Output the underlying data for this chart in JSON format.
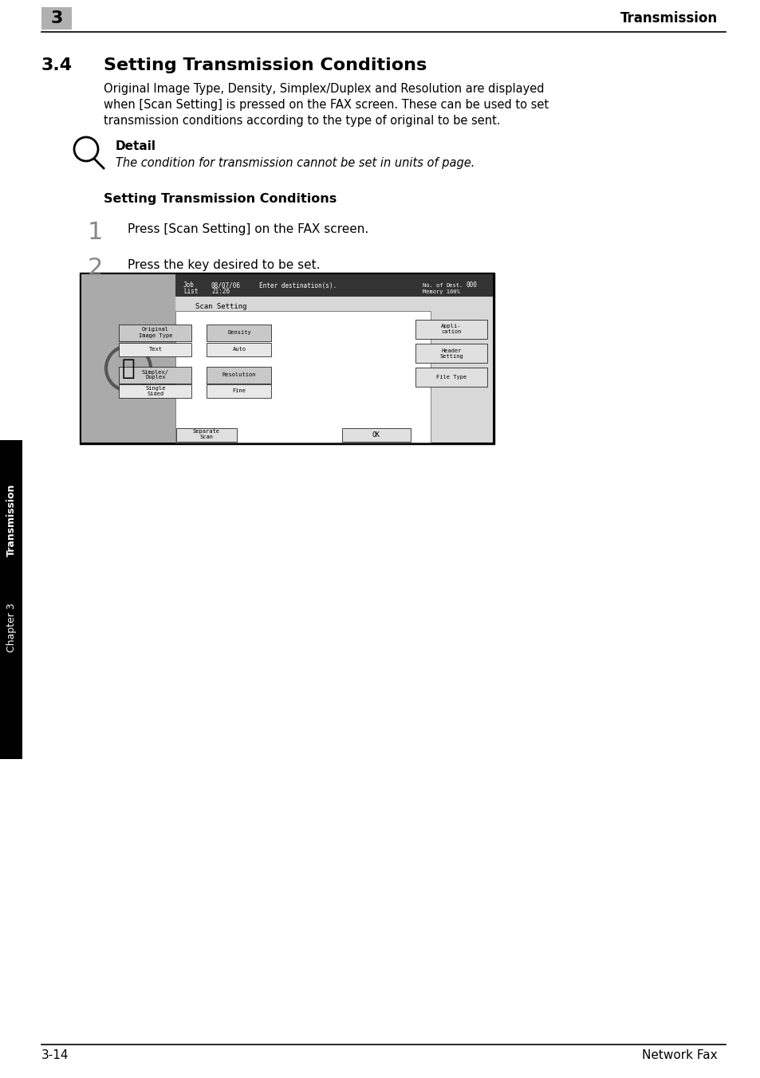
{
  "page_bg": "#ffffff",
  "header_chapter_num": "3",
  "header_chapter_bg": "#b0b0b0",
  "header_right_text": "Transmission",
  "section_num": "3.4",
  "section_title": "Setting Transmission Conditions",
  "body_text": "Original Image Type, Density, Simplex/Duplex and Resolution are displayed\nwhen [Scan Setting] is pressed on the FAX screen. These can be used to set\ntransmission conditions according to the type of original to be sent.",
  "detail_label": "Detail",
  "detail_italic": "The condition for transmission cannot be set in units of page.",
  "subsection_title": "Setting Transmission Conditions",
  "step1_num": "1",
  "step1_text": "Press [Scan Setting] on the FAX screen.",
  "step2_num": "2",
  "step2_text": "Press the key desired to be set.",
  "footer_left": "3-14",
  "footer_right": "Network Fax",
  "side_tab_text": "Transmission",
  "side_chapter_text": "Chapter 3",
  "side_tab_bg": "#000000",
  "side_tab_text_color": "#ffffff"
}
